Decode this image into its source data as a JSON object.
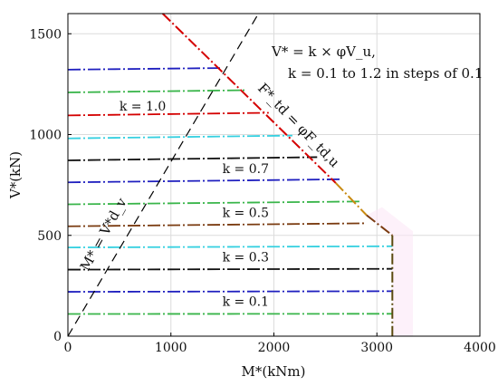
{
  "chart_data": {
    "type": "line",
    "xlabel": "M*(kNm)",
    "ylabel": "V*(kN)",
    "xlim": [
      0,
      4000
    ],
    "ylim": [
      0,
      1600
    ],
    "x_ticks": [
      "0",
      "1000",
      "2000",
      "3000",
      "4000"
    ],
    "y_ticks": [
      "0",
      "500",
      "1000",
      "1500"
    ],
    "grid": true,
    "equation_lines": [
      "V* = k × φV_u,",
      "k = 0.1 to 1.2 in steps of 0.1"
    ],
    "diagonal_label": "F*_td = φF_td,u",
    "dashed_label": "M* = V*d_v",
    "k_labels": [
      {
        "text": "k = 0.1",
        "x": 1500,
        "y": 150
      },
      {
        "text": "k = 0.3",
        "x": 1500,
        "y": 370
      },
      {
        "text": "k = 0.5",
        "x": 1500,
        "y": 590
      },
      {
        "text": "k = 0.7",
        "x": 1500,
        "y": 810
      },
      {
        "text": "k = 1.0",
        "x": 500,
        "y": 1120
      }
    ],
    "envelope": {
      "name": "F*_td = φF_td,u",
      "color": "#d40000",
      "points": [
        [
          920,
          1600
        ],
        [
          2600,
          760
        ],
        [
          2900,
          600
        ],
        [
          3150,
          500
        ],
        [
          3150,
          0
        ]
      ]
    },
    "dashed_line": {
      "name": "M* = V*d_v",
      "color": "#000000",
      "points": [
        [
          0,
          0
        ],
        [
          1850,
          1600
        ]
      ]
    },
    "series": [
      {
        "k": 0.1,
        "color": "#39b54a",
        "x": [
          0,
          3150
        ],
        "y": [
          110,
          111
        ]
      },
      {
        "k": 0.2,
        "color": "#1f1fbf",
        "x": [
          0,
          3150
        ],
        "y": [
          220,
          223
        ]
      },
      {
        "k": 0.3,
        "color": "#111111",
        "x": [
          0,
          3150
        ],
        "y": [
          330,
          334
        ]
      },
      {
        "k": 0.4,
        "color": "#35d0e0",
        "x": [
          0,
          3150
        ],
        "y": [
          440,
          446
        ]
      },
      {
        "k": 0.5,
        "color": "#7a3b10",
        "x": [
          0,
          2900
        ],
        "y": [
          545,
          560
        ]
      },
      {
        "k": 0.6,
        "color": "#39b54a",
        "x": [
          0,
          2830
        ],
        "y": [
          654,
          668
        ]
      },
      {
        "k": 0.7,
        "color": "#1f1fbf",
        "x": [
          0,
          2650
        ],
        "y": [
          763,
          778
        ]
      },
      {
        "k": 0.8,
        "color": "#111111",
        "x": [
          0,
          2420
        ],
        "y": [
          872,
          888
        ]
      },
      {
        "k": 0.9,
        "color": "#35d0e0",
        "x": [
          0,
          2180
        ],
        "y": [
          981,
          995
        ]
      },
      {
        "k": 1.0,
        "color": "#d40000",
        "x": [
          0,
          1950
        ],
        "y": [
          1095,
          1108
        ]
      },
      {
        "k": 1.1,
        "color": "#39b54a",
        "x": [
          0,
          1730
        ],
        "y": [
          1209,
          1220
        ]
      },
      {
        "k": 1.2,
        "color": "#1f1fbf",
        "x": [
          0,
          1500
        ],
        "y": [
          1322,
          1330
        ]
      }
    ]
  }
}
